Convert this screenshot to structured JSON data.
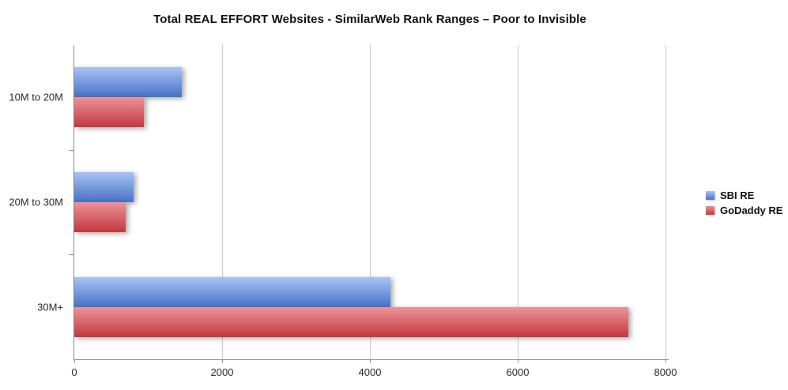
{
  "chart_data": {
    "type": "bar",
    "orientation": "horizontal",
    "title": "Total REAL EFFORT Websites - SimilarWeb Rank Ranges – Poor to Invisible",
    "categories": [
      "10M to 20M",
      "20M to 30M",
      "30M+"
    ],
    "series": [
      {
        "name": "SBI RE",
        "values": [
          1450,
          800,
          4280
        ],
        "color_top": "#a9c3f5",
        "color_bottom": "#4672c6",
        "color": "#6b92dc"
      },
      {
        "name": "GoDaddy RE",
        "values": [
          940,
          700,
          7500
        ],
        "color_top": "#ec9397",
        "color_bottom": "#c2393f",
        "color": "#d65f64"
      }
    ],
    "x_axis": {
      "min": 0,
      "max": 8000,
      "ticks": [
        0,
        2000,
        4000,
        6000,
        8000
      ],
      "tick_labels": [
        "0",
        "2000",
        "4000",
        "6000",
        "8000"
      ]
    },
    "grid": true,
    "legend_position": "right",
    "colors": {
      "gridline": "#cccccc",
      "axis": "#8c8c8c",
      "text": "#2b2b2b",
      "title": "#111111"
    }
  }
}
